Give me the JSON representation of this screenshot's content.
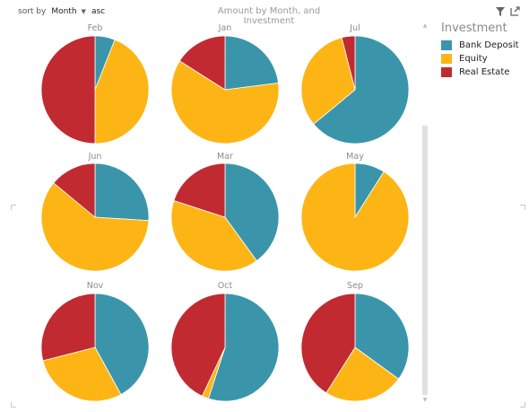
{
  "sort": {
    "label": "sort by",
    "field": "Month",
    "direction": "asc"
  },
  "icons": {
    "filter": "filter-icon",
    "focus": "focus-mode-icon",
    "sort_arrow": "dropdown-arrow-icon"
  },
  "chart_data": {
    "type": "pie",
    "title": "Amount by Month, and Investment",
    "legend_title": "Investment",
    "legend_position": "right",
    "series": [
      {
        "name": "Bank Deposit",
        "color": "#3a95ab"
      },
      {
        "name": "Equity",
        "color": "#fdb515"
      },
      {
        "name": "Real Estate",
        "color": "#c12a31"
      }
    ],
    "pies": [
      {
        "label": "Feb",
        "values": [
          6,
          44,
          50
        ]
      },
      {
        "label": "Jan",
        "values": [
          23,
          61,
          16
        ]
      },
      {
        "label": "Jul",
        "values": [
          64,
          32,
          4
        ]
      },
      {
        "label": "Jun",
        "values": [
          26,
          60,
          14
        ]
      },
      {
        "label": "Mar",
        "values": [
          40,
          40,
          20
        ]
      },
      {
        "label": "May",
        "values": [
          9,
          91,
          0
        ]
      },
      {
        "label": "Nov",
        "values": [
          42,
          29,
          29
        ]
      },
      {
        "label": "Oct",
        "values": [
          55,
          2,
          43
        ]
      },
      {
        "label": "Sep",
        "values": [
          35,
          24,
          41
        ]
      }
    ]
  }
}
